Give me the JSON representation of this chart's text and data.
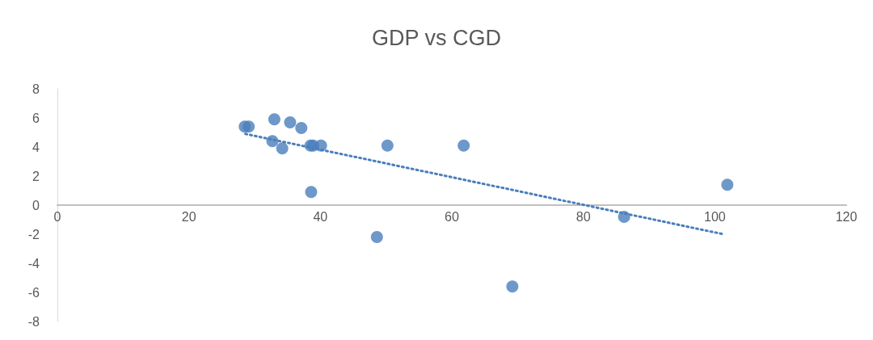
{
  "chart_data": {
    "type": "scatter",
    "title": "GDP vs CGD",
    "marker": "circle",
    "grid": false,
    "xlim": [
      0,
      120
    ],
    "xticks": [
      0,
      20,
      40,
      60,
      80,
      100,
      120
    ],
    "ylim": [
      -8,
      8
    ],
    "yticks": [
      -8,
      -6,
      -4,
      -2,
      0,
      2,
      4,
      6,
      8
    ],
    "series": [
      {
        "type": "scatter",
        "color": "#4a7ebb",
        "x": [
          28.5,
          29.1,
          33.0,
          32.7,
          34.2,
          35.4,
          37.1,
          38.5,
          38.9,
          40.1,
          38.6,
          48.6,
          50.2,
          61.8,
          69.2,
          86.2,
          101.9
        ],
        "values": [
          5.4,
          5.4,
          5.9,
          4.4,
          3.9,
          5.7,
          5.3,
          4.1,
          4.1,
          4.1,
          0.9,
          -2.2,
          4.1,
          4.1,
          -5.6,
          -0.8,
          1.4
        ]
      },
      {
        "type": "line",
        "color": "#4a7ebb",
        "line_style": "dotted",
        "marker": "none",
        "x": [
          28.6,
          101.3
        ],
        "values": [
          4.9,
          -2.0
        ]
      }
    ]
  }
}
